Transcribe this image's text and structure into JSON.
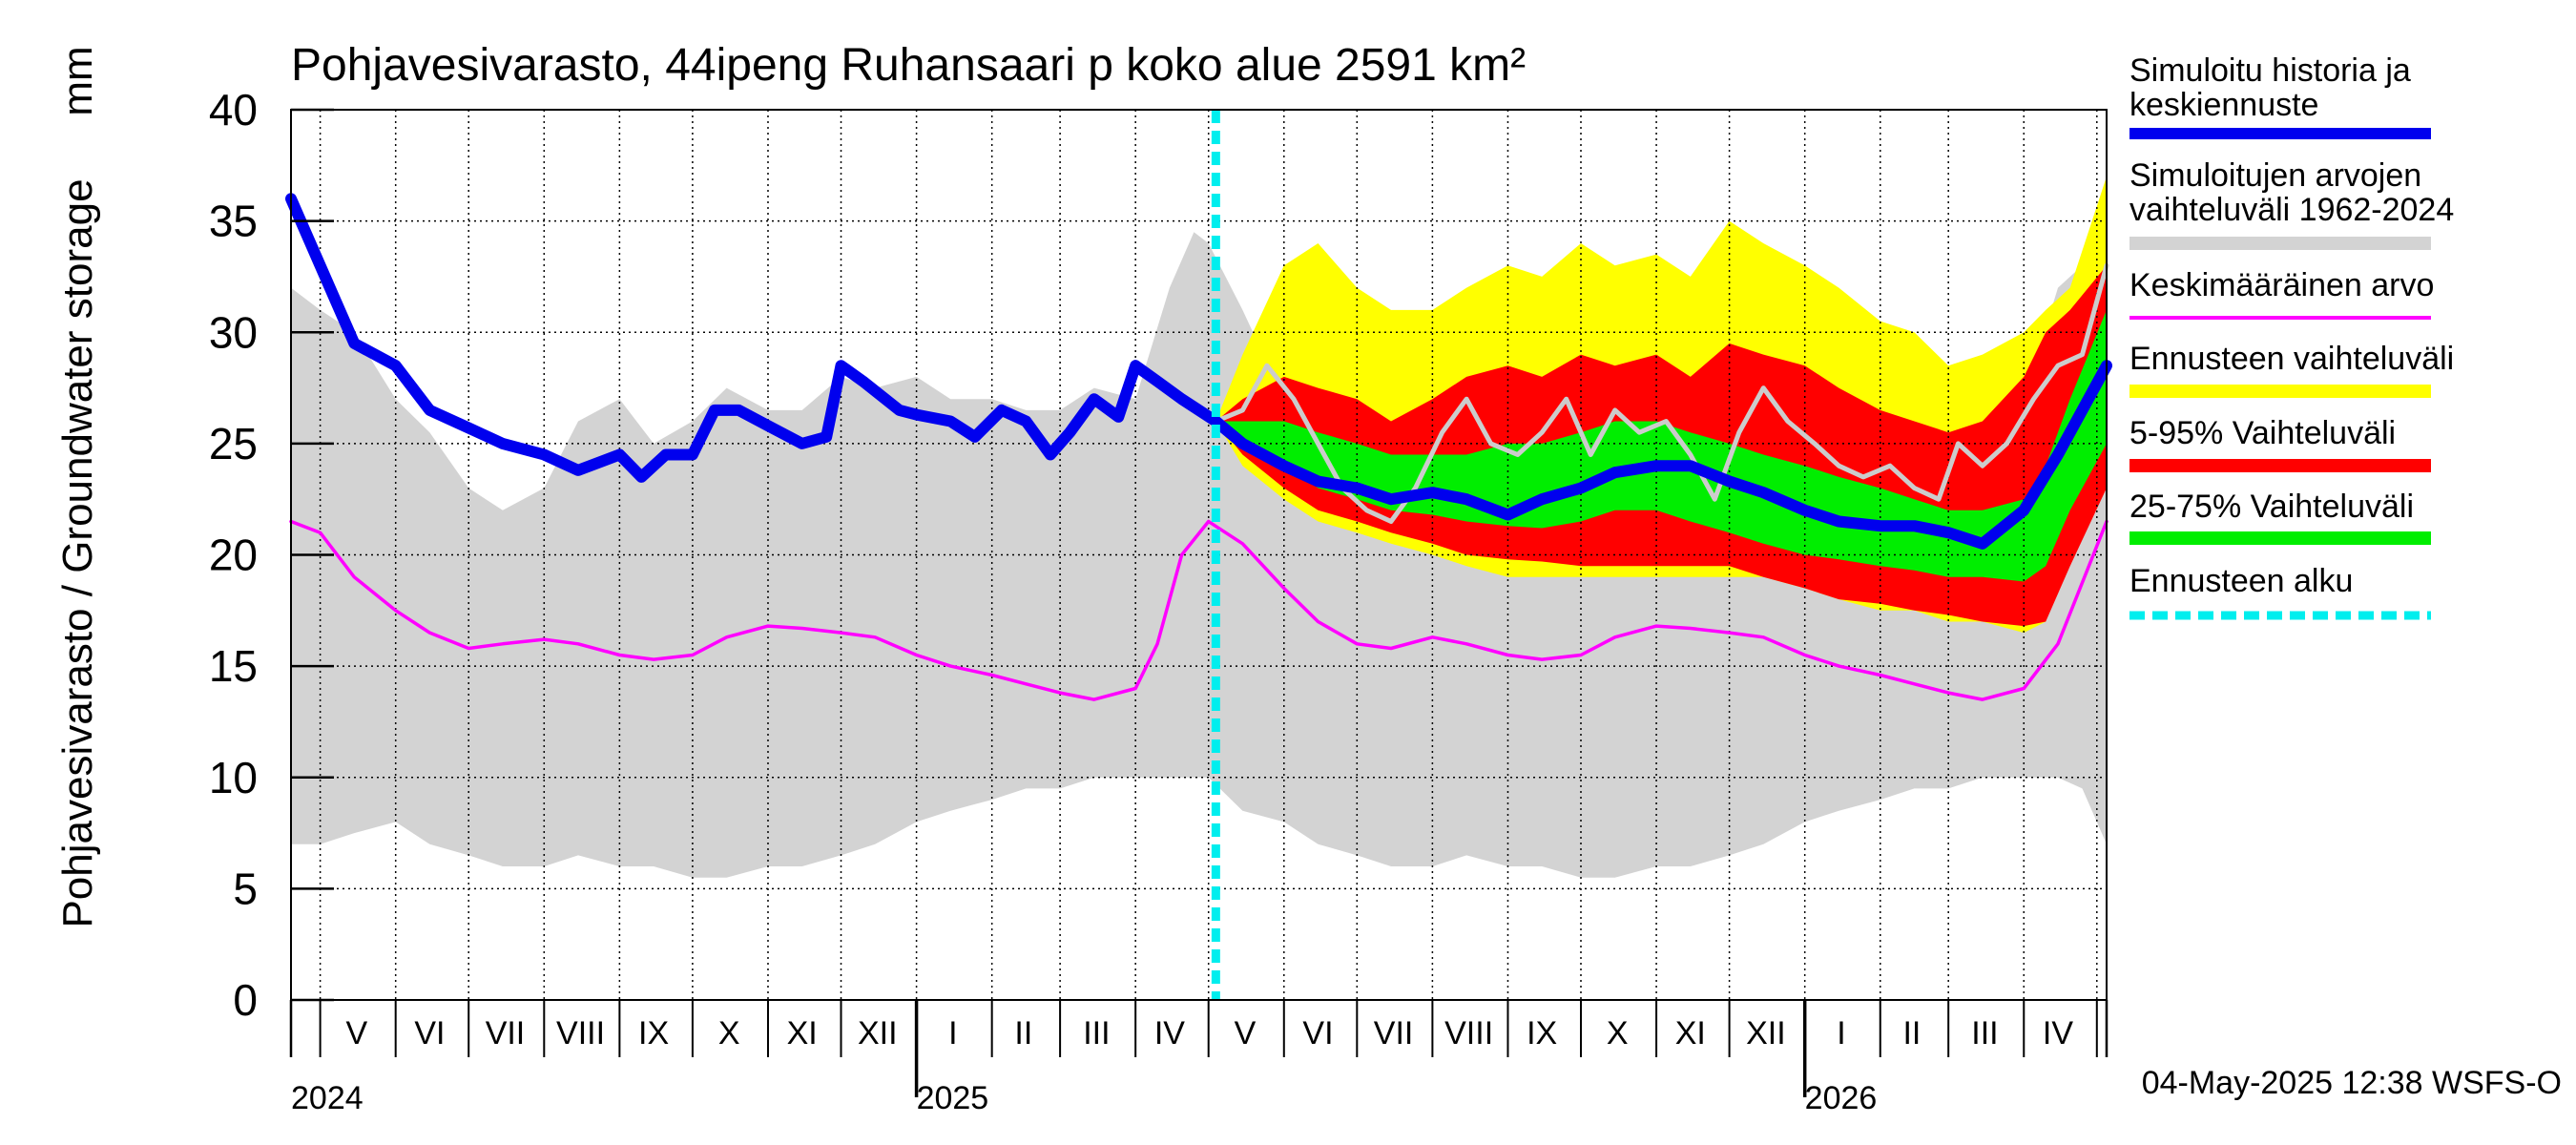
{
  "chart_data": {
    "type": "area",
    "title": "Pohjavesivarasto, 44ipeng Ruhansaari p koko alue 2591 km²",
    "ylabel": "Pohjavesivarasto / Groundwater storage",
    "yunit": "mm",
    "ylim": [
      0,
      40
    ],
    "yticks": [
      0,
      5,
      10,
      15,
      20,
      25,
      30,
      35,
      40
    ],
    "xlim": [
      "2024-04-19",
      "2026-05-05"
    ],
    "grid": true,
    "legend_position": "right",
    "month_labels": [
      {
        "label": "V",
        "date": "2024-05-16"
      },
      {
        "label": "VI",
        "date": "2024-06-15"
      },
      {
        "label": "VII",
        "date": "2024-07-16"
      },
      {
        "label": "VIII",
        "date": "2024-08-16"
      },
      {
        "label": "IX",
        "date": "2024-09-15"
      },
      {
        "label": "X",
        "date": "2024-10-16"
      },
      {
        "label": "XI",
        "date": "2024-11-15"
      },
      {
        "label": "XII",
        "date": "2024-12-16"
      },
      {
        "label": "I",
        "date": "2025-01-16"
      },
      {
        "label": "II",
        "date": "2025-02-14"
      },
      {
        "label": "III",
        "date": "2025-03-16"
      },
      {
        "label": "IV",
        "date": "2025-04-15"
      },
      {
        "label": "V",
        "date": "2025-05-16"
      },
      {
        "label": "VI",
        "date": "2025-06-15"
      },
      {
        "label": "VII",
        "date": "2025-07-16"
      },
      {
        "label": "VIII",
        "date": "2025-08-16"
      },
      {
        "label": "IX",
        "date": "2025-09-15"
      },
      {
        "label": "X",
        "date": "2025-10-16"
      },
      {
        "label": "XI",
        "date": "2025-11-15"
      },
      {
        "label": "XII",
        "date": "2025-12-16"
      },
      {
        "label": "I",
        "date": "2026-01-16"
      },
      {
        "label": "II",
        "date": "2026-02-14"
      },
      {
        "label": "III",
        "date": "2026-03-16"
      },
      {
        "label": "IV",
        "date": "2026-04-15"
      }
    ],
    "year_labels": [
      {
        "label": "2024",
        "date": "2024-04-19"
      },
      {
        "label": "2025",
        "date": "2025-01-01"
      },
      {
        "label": "2026",
        "date": "2026-01-01"
      }
    ],
    "forecast_start": "2025-05-04",
    "historical_range": {
      "name": "Simuloitujen arvojen vaihteluväli 1962-2024",
      "color": "#d3d3d3",
      "points": [
        [
          "2024-04-19",
          7,
          32
        ],
        [
          "2024-05-01",
          7,
          31
        ],
        [
          "2024-05-15",
          7.5,
          30
        ],
        [
          "2024-06-01",
          8,
          27
        ],
        [
          "2024-06-15",
          7,
          25.5
        ],
        [
          "2024-07-01",
          6.5,
          23
        ],
        [
          "2024-07-15",
          6,
          22
        ],
        [
          "2024-08-01",
          6,
          23
        ],
        [
          "2024-08-15",
          6.5,
          26
        ],
        [
          "2024-09-01",
          6,
          27
        ],
        [
          "2024-09-15",
          6,
          25
        ],
        [
          "2024-10-01",
          5.5,
          26
        ],
        [
          "2024-10-15",
          5.5,
          27.5
        ],
        [
          "2024-11-01",
          6,
          26.5
        ],
        [
          "2024-11-15",
          6,
          26.5
        ],
        [
          "2024-12-01",
          6.5,
          28
        ],
        [
          "2024-12-15",
          7,
          27.5
        ],
        [
          "2025-01-01",
          8,
          28
        ],
        [
          "2025-01-15",
          8.5,
          27
        ],
        [
          "2025-02-01",
          9,
          27
        ],
        [
          "2025-02-15",
          9.5,
          26.5
        ],
        [
          "2025-03-01",
          9.5,
          26.5
        ],
        [
          "2025-03-15",
          10,
          27.5
        ],
        [
          "2025-04-01",
          10,
          27
        ],
        [
          "2025-04-15",
          10,
          32
        ],
        [
          "2025-04-25",
          10,
          34.5
        ],
        [
          "2025-05-01",
          10,
          34
        ],
        [
          "2025-05-15",
          8.5,
          31
        ],
        [
          "2025-06-01",
          8,
          27
        ],
        [
          "2025-06-15",
          7,
          25.5
        ],
        [
          "2025-07-01",
          6.5,
          23
        ],
        [
          "2025-07-15",
          6,
          22
        ],
        [
          "2025-08-01",
          6,
          23
        ],
        [
          "2025-08-15",
          6.5,
          26
        ],
        [
          "2025-09-01",
          6,
          27
        ],
        [
          "2025-09-15",
          6,
          25
        ],
        [
          "2025-10-01",
          5.5,
          26
        ],
        [
          "2025-10-15",
          5.5,
          27.5
        ],
        [
          "2025-11-01",
          6,
          26.5
        ],
        [
          "2025-11-15",
          6,
          26.5
        ],
        [
          "2025-12-01",
          6.5,
          28
        ],
        [
          "2025-12-15",
          7,
          27.5
        ],
        [
          "2026-01-01",
          8,
          28
        ],
        [
          "2026-01-15",
          8.5,
          27
        ],
        [
          "2026-02-01",
          9,
          27
        ],
        [
          "2026-02-15",
          9.5,
          26.5
        ],
        [
          "2026-03-01",
          9.5,
          26.5
        ],
        [
          "2026-03-15",
          10,
          27.5
        ],
        [
          "2026-04-01",
          10,
          27
        ],
        [
          "2026-04-15",
          10,
          32
        ],
        [
          "2026-04-25",
          9.5,
          33
        ],
        [
          "2026-05-05",
          7,
          32
        ]
      ]
    },
    "forecast_bands": {
      "dates": [
        "2025-05-04",
        "2025-05-15",
        "2025-06-01",
        "2025-06-15",
        "2025-07-01",
        "2025-07-15",
        "2025-08-01",
        "2025-08-15",
        "2025-09-01",
        "2025-09-15",
        "2025-10-01",
        "2025-10-15",
        "2025-11-01",
        "2025-11-15",
        "2025-12-01",
        "2025-12-15",
        "2026-01-01",
        "2026-01-15",
        "2026-02-01",
        "2026-02-15",
        "2026-03-01",
        "2026-03-15",
        "2026-04-01",
        "2026-04-10",
        "2026-04-20",
        "2026-05-05"
      ],
      "yellow": {
        "name": "Ennusteen vaihteluväli",
        "color": "#ffff00",
        "low": [
          26,
          24,
          22.5,
          21.5,
          21,
          20.5,
          20,
          19.5,
          19,
          19,
          19,
          19,
          19,
          19,
          19,
          19,
          18.5,
          18,
          17.5,
          17.5,
          17,
          17,
          16.5,
          17,
          20,
          23
        ],
        "high": [
          26,
          29,
          33,
          34,
          32,
          31,
          31,
          32,
          33,
          32.5,
          34,
          33,
          33.5,
          32.5,
          35,
          34,
          33,
          32,
          30.5,
          30,
          28.5,
          29,
          30,
          31,
          32,
          37
        ]
      },
      "red": {
        "name": "5-95% Vaihteluväli",
        "color": "#ff0000",
        "low": [
          26,
          24.5,
          23,
          22,
          21.5,
          21,
          20.5,
          20,
          19.8,
          19.7,
          19.5,
          19.5,
          19.5,
          19.5,
          19.5,
          19,
          18.5,
          18,
          17.8,
          17.5,
          17.3,
          17,
          16.8,
          17,
          19.5,
          23
        ],
        "high": [
          26,
          27,
          28,
          27.5,
          27,
          26,
          27,
          28,
          28.5,
          28,
          29,
          28.5,
          29,
          28,
          29.5,
          29,
          28.5,
          27.5,
          26.5,
          26,
          25.5,
          26,
          28,
          30,
          31,
          33
        ]
      },
      "green": {
        "name": "25-75% Vaihteluväli",
        "color": "#00ee00",
        "low": [
          26,
          25,
          24,
          23,
          22.5,
          22,
          21.8,
          21.5,
          21.3,
          21.2,
          21.5,
          22,
          22,
          21.5,
          21,
          20.5,
          20,
          19.8,
          19.5,
          19.3,
          19,
          19,
          18.8,
          19.5,
          22,
          25
        ],
        "high": [
          26,
          26,
          26,
          25.5,
          25,
          24.5,
          24.5,
          24.5,
          25,
          25,
          25.5,
          26,
          26,
          25.5,
          25,
          24.5,
          24,
          23.5,
          23,
          22.5,
          22,
          22,
          22.5,
          24,
          27,
          31
        ]
      }
    },
    "series": [
      {
        "name": "Simuloitu historia ja keskiennuste",
        "color": "#0000ee",
        "x": [
          "2024-04-19",
          "2024-05-01",
          "2024-05-15",
          "2024-06-01",
          "2024-06-15",
          "2024-07-01",
          "2024-07-15",
          "2024-08-01",
          "2024-08-15",
          "2024-09-01",
          "2024-09-10",
          "2024-09-20",
          "2024-10-01",
          "2024-10-10",
          "2024-10-20",
          "2024-11-01",
          "2024-11-15",
          "2024-11-25",
          "2024-12-01",
          "2024-12-10",
          "2024-12-25",
          "2025-01-01",
          "2025-01-15",
          "2025-01-25",
          "2025-02-05",
          "2025-02-15",
          "2025-02-25",
          "2025-03-05",
          "2025-03-15",
          "2025-03-25",
          "2025-04-01",
          "2025-04-10",
          "2025-04-20",
          "2025-05-04",
          "2025-05-15",
          "2025-06-01",
          "2025-06-15",
          "2025-07-01",
          "2025-07-15",
          "2025-08-01",
          "2025-08-15",
          "2025-09-01",
          "2025-09-15",
          "2025-10-01",
          "2025-10-15",
          "2025-11-01",
          "2025-11-15",
          "2025-12-01",
          "2025-12-15",
          "2026-01-01",
          "2026-01-15",
          "2026-02-01",
          "2026-02-15",
          "2026-03-01",
          "2026-03-15",
          "2026-04-01",
          "2026-04-15",
          "2026-05-05"
        ],
        "y": [
          36,
          33,
          29.5,
          28.5,
          26.5,
          25.7,
          25,
          24.5,
          23.8,
          24.5,
          23.5,
          24.5,
          24.5,
          26.5,
          26.5,
          25.8,
          25,
          25.3,
          28.5,
          27.8,
          26.5,
          26.3,
          26,
          25.3,
          26.5,
          26,
          24.5,
          25.5,
          27,
          26.2,
          28.5,
          27.8,
          27,
          26,
          25,
          24,
          23.3,
          23,
          22.5,
          22.8,
          22.5,
          21.8,
          22.5,
          23,
          23.7,
          24,
          24,
          23.3,
          22.8,
          22,
          21.5,
          21.3,
          21.3,
          21,
          20.5,
          22,
          24.5,
          28.5
        ]
      },
      {
        "name": "Keskimääräinen arvo",
        "color": "#ff00ff",
        "x": [
          "2024-04-19",
          "2024-05-01",
          "2024-05-15",
          "2024-06-01",
          "2024-06-15",
          "2024-07-01",
          "2024-07-15",
          "2024-08-01",
          "2024-08-15",
          "2024-09-01",
          "2024-09-15",
          "2024-10-01",
          "2024-10-15",
          "2024-11-01",
          "2024-11-15",
          "2024-12-01",
          "2024-12-15",
          "2025-01-01",
          "2025-01-15",
          "2025-02-01",
          "2025-02-15",
          "2025-03-01",
          "2025-03-15",
          "2025-04-01",
          "2025-04-10",
          "2025-04-20",
          "2025-05-01",
          "2025-05-15",
          "2025-06-01",
          "2025-06-15",
          "2025-07-01",
          "2025-07-15",
          "2025-08-01",
          "2025-08-15",
          "2025-09-01",
          "2025-09-15",
          "2025-10-01",
          "2025-10-15",
          "2025-11-01",
          "2025-11-15",
          "2025-12-01",
          "2025-12-15",
          "2026-01-01",
          "2026-01-15",
          "2026-02-01",
          "2026-02-15",
          "2026-03-01",
          "2026-03-15",
          "2026-04-01",
          "2026-04-15",
          "2026-05-05"
        ],
        "y": [
          21.5,
          21,
          19,
          17.5,
          16.5,
          15.8,
          16,
          16.2,
          16,
          15.5,
          15.3,
          15.5,
          16.3,
          16.8,
          16.7,
          16.5,
          16.3,
          15.5,
          15,
          14.6,
          14.2,
          13.8,
          13.5,
          14,
          16,
          20,
          21.5,
          20.5,
          18.5,
          17,
          16,
          15.8,
          16.3,
          16,
          15.5,
          15.3,
          15.5,
          16.3,
          16.8,
          16.7,
          16.5,
          16.3,
          15.5,
          15,
          14.6,
          14.2,
          13.8,
          13.5,
          14,
          16,
          21.5
        ]
      },
      {
        "name": "",
        "color": "#cccccc",
        "x": [
          "2025-05-04",
          "2025-05-15",
          "2025-05-25",
          "2025-06-05",
          "2025-06-15",
          "2025-06-25",
          "2025-07-05",
          "2025-07-15",
          "2025-07-25",
          "2025-08-05",
          "2025-08-15",
          "2025-08-25",
          "2025-09-05",
          "2025-09-15",
          "2025-09-25",
          "2025-10-05",
          "2025-10-15",
          "2025-10-25",
          "2025-11-05",
          "2025-11-15",
          "2025-11-25",
          "2025-12-05",
          "2025-12-15",
          "2025-12-25",
          "2026-01-05",
          "2026-01-15",
          "2026-01-25",
          "2026-02-05",
          "2026-02-15",
          "2026-02-25",
          "2026-03-05",
          "2026-03-15",
          "2026-03-25",
          "2026-04-05",
          "2026-04-15",
          "2026-04-25",
          "2026-05-05"
        ],
        "y": [
          26,
          26.5,
          28.5,
          27,
          25,
          23,
          22,
          21.5,
          23,
          25.5,
          27,
          25,
          24.5,
          25.5,
          27,
          24.5,
          26.5,
          25.5,
          26,
          24.5,
          22.5,
          25.5,
          27.5,
          26,
          25,
          24,
          23.5,
          24,
          23,
          22.5,
          25,
          24,
          25,
          27,
          28.5,
          29,
          33
        ]
      }
    ],
    "legend": [
      {
        "label": "Simuloitu historia ja keskiennuste",
        "color": "#0000ee",
        "style": "line"
      },
      {
        "label": "Simuloitujen arvojen vaihteluväli 1962-2024",
        "color": "#d3d3d3",
        "style": "band"
      },
      {
        "label": "Keskimääräinen arvo",
        "color": "#ff00ff",
        "style": "thin"
      },
      {
        "label": "Ennusteen vaihteluväli",
        "color": "#ffff00",
        "style": "band"
      },
      {
        "label": "5-95% Vaihteluväli",
        "color": "#ff0000",
        "style": "band"
      },
      {
        "label": "25-75% Vaihteluväli",
        "color": "#00ee00",
        "style": "band"
      },
      {
        "label": "Ennusteen alku",
        "color": "#00eeee",
        "style": "dashed"
      }
    ],
    "footer": "04-May-2025 12:38 WSFS-O"
  }
}
